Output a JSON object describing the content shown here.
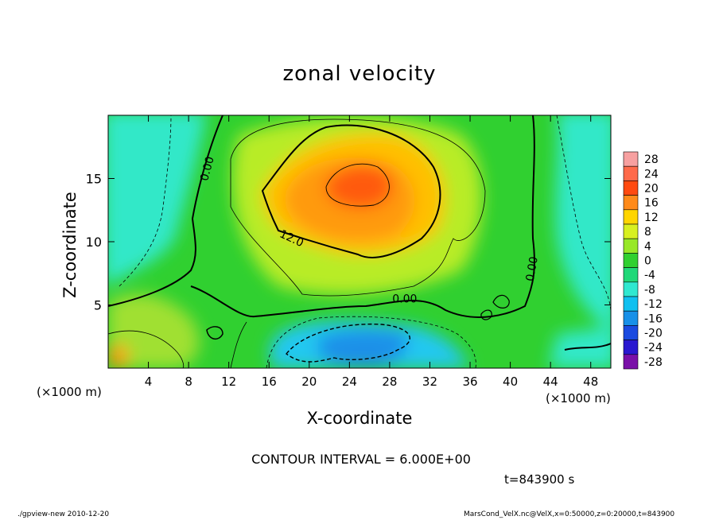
{
  "chart_data": {
    "type": "heatmap",
    "title": "zonal velocity",
    "xlabel": "X-coordinate",
    "ylabel": "Z-coordinate",
    "x_unit": "(×1000 m)",
    "y_unit": "(×1000 m)",
    "xlim": [
      0,
      50
    ],
    "ylim": [
      0,
      20
    ],
    "x_ticks": [
      4,
      8,
      12,
      16,
      20,
      24,
      28,
      32,
      36,
      40,
      44,
      48
    ],
    "y_ticks": [
      5,
      10,
      15
    ],
    "colorbar": {
      "levels": [
        28,
        24,
        20,
        16,
        12,
        8,
        4,
        0,
        -4,
        -8,
        -12,
        -16,
        -20,
        -24,
        -28
      ],
      "colors": [
        "#f7a0a0",
        "#ff6a4a",
        "#ff4a10",
        "#ff8a1a",
        "#ffd500",
        "#d8f020",
        "#98e828",
        "#30d030",
        "#20d878",
        "#30e8d0",
        "#10c0f0",
        "#1890e8",
        "#1a4ae0",
        "#2a18d0",
        "#7a10a8"
      ]
    },
    "contour_labels": [
      {
        "text": "0.00",
        "x": 10.2,
        "y": 15.7,
        "rotate": -75
      },
      {
        "text": "12.0",
        "x": 18.1,
        "y": 10.0,
        "rotate": 25
      },
      {
        "text": "0.00",
        "x": 29.5,
        "y": 5.2,
        "rotate": 0
      },
      {
        "text": "0.00",
        "x": 42.5,
        "y": 7.8,
        "rotate": -80
      }
    ],
    "contour_interval": "CONTOUR INTERVAL = 6.000E+00",
    "time": "t=843900 s"
  },
  "footer": {
    "left": "./gpview-new   2010-12-20",
    "right": "MarsCond_VelX.nc@VelX,x=0:50000,z=0:20000,t=843900"
  }
}
